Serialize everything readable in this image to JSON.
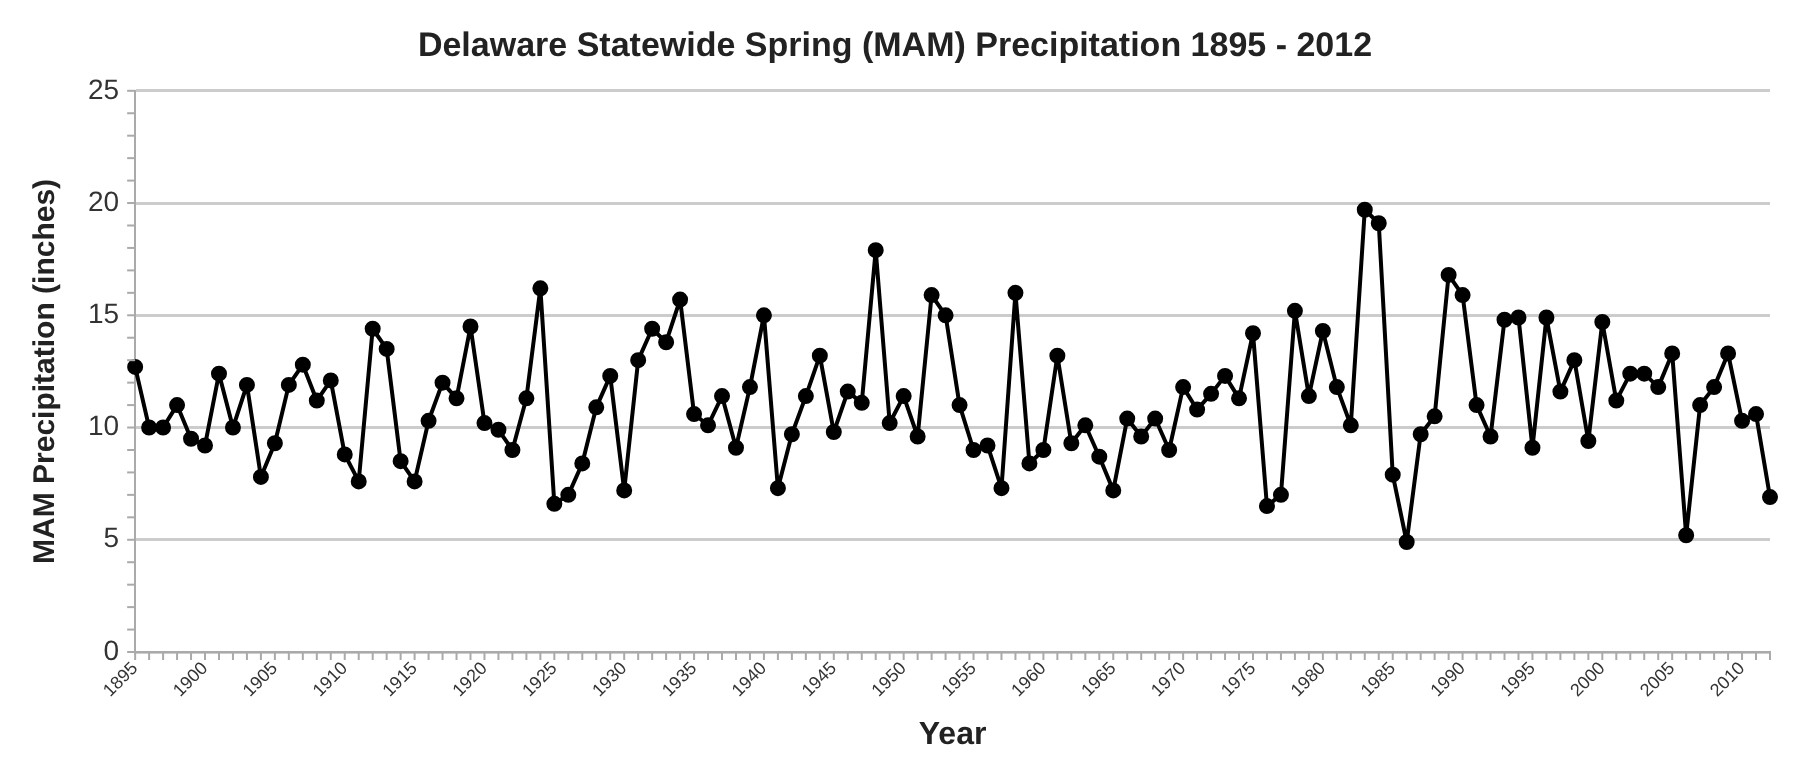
{
  "chart_data": {
    "type": "line",
    "title": "Delaware Statewide Spring (MAM) Precipitation 1895 - 2012",
    "xlabel": "Year",
    "ylabel": "MAM Precipitation (inches)",
    "categories": [
      "1895",
      null,
      null,
      null,
      null,
      "1900",
      null,
      null,
      null,
      null,
      "1905",
      null,
      null,
      null,
      null,
      "1910",
      null,
      null,
      null,
      null,
      "1915",
      null,
      null,
      null,
      null,
      "1920",
      null,
      null,
      null,
      null,
      "1925",
      null,
      null,
      null,
      null,
      "1930",
      null,
      null,
      null,
      null,
      "1935",
      null,
      null,
      null,
      null,
      "1940",
      null,
      null,
      null,
      null,
      "1945",
      null,
      null,
      null,
      null,
      "1950",
      null,
      null,
      null,
      null,
      "1955",
      null,
      null,
      null,
      null,
      "1960",
      null,
      null,
      null,
      null,
      "1965",
      null,
      null,
      null,
      null,
      "1970",
      null,
      null,
      null,
      null,
      "1975",
      null,
      null,
      null,
      null,
      "1980",
      null,
      null,
      null,
      null,
      "1985",
      null,
      null,
      null,
      null,
      "1990",
      null,
      null,
      null,
      null,
      "1995",
      null,
      null,
      null,
      null,
      "2000",
      null,
      null,
      null,
      null,
      "2005",
      null,
      null,
      null,
      null,
      "2010",
      null,
      null
    ],
    "series": [
      {
        "color": "#000000",
        "values": [
          12.7,
          10.0,
          10.0,
          11.0,
          9.5,
          9.2,
          12.4,
          10.0,
          11.9,
          7.8,
          9.3,
          11.9,
          12.8,
          11.2,
          12.1,
          8.8,
          7.6,
          14.4,
          13.5,
          8.5,
          7.6,
          10.3,
          12.0,
          11.3,
          14.5,
          10.2,
          9.9,
          9.0,
          11.3,
          16.2,
          6.6,
          7.0,
          8.4,
          10.9,
          12.3,
          7.2,
          13.0,
          14.4,
          13.8,
          15.7,
          10.6,
          10.1,
          11.4,
          9.1,
          11.8,
          15.0,
          7.3,
          9.7,
          11.4,
          13.2,
          9.8,
          11.6,
          11.1,
          17.9,
          10.2,
          11.4,
          9.6,
          15.9,
          15.0,
          11.0,
          9.0,
          9.2,
          7.3,
          16.0,
          8.4,
          9.0,
          13.2,
          9.3,
          10.1,
          8.7,
          7.2,
          10.4,
          9.6,
          10.4,
          9.0,
          11.8,
          10.8,
          11.5,
          12.3,
          11.3,
          14.2,
          6.5,
          7.0,
          15.2,
          11.4,
          14.3,
          11.8,
          10.1,
          19.7,
          19.1,
          7.9,
          4.9,
          9.7,
          10.5,
          16.8,
          15.9,
          11.0,
          9.6,
          14.8,
          14.9,
          9.1,
          14.9,
          11.6,
          13.0,
          9.4,
          14.7,
          11.2,
          12.4,
          12.4,
          11.8,
          13.3,
          5.2,
          11.0,
          11.8,
          13.3,
          10.3,
          10.6,
          6.9
        ]
      }
    ],
    "ylim": [
      0,
      25
    ],
    "yticks": [
      0,
      5,
      10,
      15,
      20,
      25
    ],
    "grid": "y",
    "legend": false,
    "marker": "circle",
    "line_style": "solid"
  }
}
